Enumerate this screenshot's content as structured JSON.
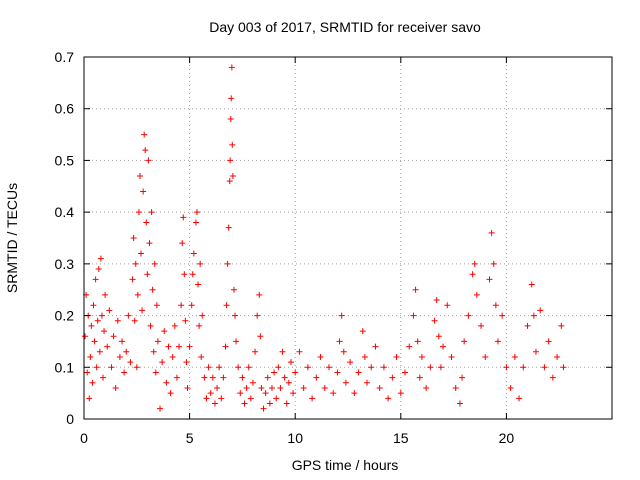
{
  "chart_data": {
    "type": "scatter",
    "title": "Day 003 of 2017, SRMTID for receiver savo",
    "xlabel": "GPS time / hours",
    "ylabel": "SRMTID / TECUs",
    "xlim": [
      0,
      25
    ],
    "ylim": [
      0,
      0.7
    ],
    "x_ticks": [
      0,
      5,
      10,
      15,
      20
    ],
    "x_tick_labels": [
      "0",
      "5",
      "10",
      "15",
      "20"
    ],
    "y_ticks": [
      0,
      0.1,
      0.2,
      0.3,
      0.4,
      0.5,
      0.6,
      0.7
    ],
    "y_tick_labels": [
      "0",
      "0.1",
      "0.2",
      "0.3",
      "0.4",
      "0.5",
      "0.6",
      "0.7"
    ],
    "grid": true,
    "marker": "plus",
    "series": [
      {
        "name": "SRMTID",
        "color": "#ff0000",
        "points": [
          [
            0.05,
            0.16
          ],
          [
            0.1,
            0.24
          ],
          [
            0.15,
            0.09
          ],
          [
            0.2,
            0.2
          ],
          [
            0.25,
            0.04
          ],
          [
            0.3,
            0.12
          ],
          [
            0.35,
            0.18
          ],
          [
            0.4,
            0.07
          ],
          [
            0.45,
            0.22
          ],
          [
            0.5,
            0.15
          ],
          [
            0.55,
            0.27
          ],
          [
            0.6,
            0.1
          ],
          [
            0.65,
            0.19
          ],
          [
            0.7,
            0.29
          ],
          [
            0.75,
            0.13
          ],
          [
            0.8,
            0.31
          ],
          [
            0.85,
            0.2
          ],
          [
            0.9,
            0.08
          ],
          [
            0.95,
            0.17
          ],
          [
            1.0,
            0.24
          ],
          [
            1.1,
            0.14
          ],
          [
            1.2,
            0.21
          ],
          [
            1.3,
            0.1
          ],
          [
            1.4,
            0.16
          ],
          [
            1.5,
            0.06
          ],
          [
            1.6,
            0.19
          ],
          [
            1.7,
            0.12
          ],
          [
            1.8,
            0.15
          ],
          [
            1.9,
            0.09
          ],
          [
            2.0,
            0.13
          ],
          [
            2.1,
            0.2
          ],
          [
            2.2,
            0.11
          ],
          [
            2.3,
            0.27
          ],
          [
            2.35,
            0.35
          ],
          [
            2.4,
            0.19
          ],
          [
            2.45,
            0.3
          ],
          [
            2.5,
            0.1
          ],
          [
            2.55,
            0.24
          ],
          [
            2.6,
            0.4
          ],
          [
            2.65,
            0.47
          ],
          [
            2.7,
            0.32
          ],
          [
            2.75,
            0.21
          ],
          [
            2.8,
            0.44
          ],
          [
            2.85,
            0.55
          ],
          [
            2.9,
            0.52
          ],
          [
            2.95,
            0.38
          ],
          [
            3.0,
            0.28
          ],
          [
            3.05,
            0.5
          ],
          [
            3.1,
            0.34
          ],
          [
            3.15,
            0.18
          ],
          [
            3.2,
            0.4
          ],
          [
            3.25,
            0.25
          ],
          [
            3.3,
            0.13
          ],
          [
            3.35,
            0.3
          ],
          [
            3.4,
            0.09
          ],
          [
            3.45,
            0.22
          ],
          [
            3.5,
            0.15
          ],
          [
            3.6,
            0.02
          ],
          [
            3.7,
            0.11
          ],
          [
            3.8,
            0.17
          ],
          [
            3.9,
            0.07
          ],
          [
            4.0,
            0.14
          ],
          [
            4.1,
            0.05
          ],
          [
            4.2,
            0.12
          ],
          [
            4.3,
            0.18
          ],
          [
            4.4,
            0.08
          ],
          [
            4.5,
            0.14
          ],
          [
            4.6,
            0.22
          ],
          [
            4.65,
            0.34
          ],
          [
            4.7,
            0.39
          ],
          [
            4.75,
            0.28
          ],
          [
            4.8,
            0.19
          ],
          [
            4.85,
            0.11
          ],
          [
            4.9,
            0.06
          ],
          [
            5.0,
            0.14
          ],
          [
            5.1,
            0.22
          ],
          [
            5.15,
            0.28
          ],
          [
            5.2,
            0.32
          ],
          [
            5.3,
            0.38
          ],
          [
            5.35,
            0.4
          ],
          [
            5.4,
            0.26
          ],
          [
            5.45,
            0.18
          ],
          [
            5.5,
            0.3
          ],
          [
            5.55,
            0.12
          ],
          [
            5.6,
            0.2
          ],
          [
            5.7,
            0.08
          ],
          [
            5.8,
            0.04
          ],
          [
            5.9,
            0.1
          ],
          [
            6.0,
            0.05
          ],
          [
            6.1,
            0.08
          ],
          [
            6.2,
            0.03
          ],
          [
            6.3,
            0.06
          ],
          [
            6.4,
            0.1
          ],
          [
            6.5,
            0.04
          ],
          [
            6.6,
            0.08
          ],
          [
            6.7,
            0.14
          ],
          [
            6.75,
            0.22
          ],
          [
            6.8,
            0.3
          ],
          [
            6.85,
            0.37
          ],
          [
            6.9,
            0.46
          ],
          [
            6.92,
            0.5
          ],
          [
            6.95,
            0.58
          ],
          [
            6.97,
            0.62
          ],
          [
            7.0,
            0.68
          ],
          [
            7.02,
            0.53
          ],
          [
            7.05,
            0.47
          ],
          [
            7.1,
            0.25
          ],
          [
            7.15,
            0.2
          ],
          [
            7.2,
            0.15
          ],
          [
            7.3,
            0.1
          ],
          [
            7.4,
            0.05
          ],
          [
            7.5,
            0.08
          ],
          [
            7.6,
            0.03
          ],
          [
            7.7,
            0.06
          ],
          [
            7.8,
            0.1
          ],
          [
            7.9,
            0.04
          ],
          [
            8.0,
            0.07
          ],
          [
            8.1,
            0.13
          ],
          [
            8.2,
            0.2
          ],
          [
            8.3,
            0.24
          ],
          [
            8.35,
            0.16
          ],
          [
            8.4,
            0.06
          ],
          [
            8.5,
            0.02
          ],
          [
            8.6,
            0.05
          ],
          [
            8.7,
            0.08
          ],
          [
            8.8,
            0.03
          ],
          [
            8.9,
            0.06
          ],
          [
            9.0,
            0.09
          ],
          [
            9.1,
            0.04
          ],
          [
            9.2,
            0.1
          ],
          [
            9.3,
            0.06
          ],
          [
            9.4,
            0.13
          ],
          [
            9.5,
            0.08
          ],
          [
            9.6,
            0.03
          ],
          [
            9.7,
            0.07
          ],
          [
            9.8,
            0.11
          ],
          [
            9.9,
            0.05
          ],
          [
            10.0,
            0.09
          ],
          [
            10.2,
            0.13
          ],
          [
            10.4,
            0.06
          ],
          [
            10.6,
            0.1
          ],
          [
            10.8,
            0.04
          ],
          [
            11.0,
            0.08
          ],
          [
            11.2,
            0.12
          ],
          [
            11.4,
            0.06
          ],
          [
            11.6,
            0.1
          ],
          [
            11.8,
            0.05
          ],
          [
            12.0,
            0.09
          ],
          [
            12.1,
            0.15
          ],
          [
            12.2,
            0.2
          ],
          [
            12.3,
            0.13
          ],
          [
            12.4,
            0.07
          ],
          [
            12.6,
            0.11
          ],
          [
            12.8,
            0.05
          ],
          [
            13.0,
            0.09
          ],
          [
            13.2,
            0.17
          ],
          [
            13.3,
            0.12
          ],
          [
            13.4,
            0.07
          ],
          [
            13.6,
            0.1
          ],
          [
            13.8,
            0.14
          ],
          [
            14.0,
            0.06
          ],
          [
            14.2,
            0.1
          ],
          [
            14.4,
            0.04
          ],
          [
            14.6,
            0.08
          ],
          [
            14.8,
            0.12
          ],
          [
            15.0,
            0.05
          ],
          [
            15.2,
            0.09
          ],
          [
            15.4,
            0.14
          ],
          [
            15.6,
            0.2
          ],
          [
            15.7,
            0.25
          ],
          [
            15.8,
            0.15
          ],
          [
            15.9,
            0.08
          ],
          [
            16.0,
            0.12
          ],
          [
            16.2,
            0.06
          ],
          [
            16.4,
            0.1
          ],
          [
            16.6,
            0.19
          ],
          [
            16.7,
            0.23
          ],
          [
            16.8,
            0.16
          ],
          [
            16.9,
            0.1
          ],
          [
            17.0,
            0.14
          ],
          [
            17.2,
            0.22
          ],
          [
            17.4,
            0.12
          ],
          [
            17.6,
            0.06
          ],
          [
            17.8,
            0.03
          ],
          [
            17.9,
            0.08
          ],
          [
            18.0,
            0.15
          ],
          [
            18.2,
            0.2
          ],
          [
            18.4,
            0.28
          ],
          [
            18.5,
            0.3
          ],
          [
            18.6,
            0.24
          ],
          [
            18.8,
            0.18
          ],
          [
            19.0,
            0.12
          ],
          [
            19.2,
            0.27
          ],
          [
            19.3,
            0.36
          ],
          [
            19.4,
            0.3
          ],
          [
            19.5,
            0.22
          ],
          [
            19.6,
            0.15
          ],
          [
            19.8,
            0.2
          ],
          [
            20.0,
            0.1
          ],
          [
            20.2,
            0.06
          ],
          [
            20.4,
            0.12
          ],
          [
            20.6,
            0.04
          ],
          [
            20.8,
            0.1
          ],
          [
            21.0,
            0.18
          ],
          [
            21.2,
            0.26
          ],
          [
            21.3,
            0.2
          ],
          [
            21.4,
            0.13
          ],
          [
            21.6,
            0.21
          ],
          [
            21.8,
            0.1
          ],
          [
            22.0,
            0.15
          ],
          [
            22.2,
            0.08
          ],
          [
            22.4,
            0.12
          ],
          [
            22.6,
            0.18
          ],
          [
            22.7,
            0.1
          ]
        ]
      }
    ]
  }
}
